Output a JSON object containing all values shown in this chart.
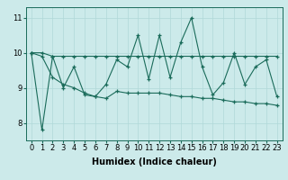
{
  "x": [
    0,
    1,
    2,
    3,
    4,
    5,
    6,
    7,
    8,
    9,
    10,
    11,
    12,
    13,
    14,
    15,
    16,
    17,
    18,
    19,
    20,
    21,
    22,
    23
  ],
  "y_main": [
    10.0,
    7.8,
    9.9,
    9.0,
    9.6,
    8.8,
    8.75,
    9.1,
    9.8,
    9.6,
    10.5,
    9.25,
    10.5,
    9.3,
    10.3,
    11.0,
    9.6,
    8.8,
    9.15,
    10.0,
    9.1,
    9.6,
    9.8,
    8.75
  ],
  "y_upper": [
    10.0,
    10.0,
    9.9,
    9.9,
    9.9,
    9.9,
    9.9,
    9.9,
    9.9,
    9.9,
    9.9,
    9.9,
    9.9,
    9.9,
    9.9,
    9.9,
    9.9,
    9.9,
    9.9,
    9.9,
    9.9,
    9.9,
    9.9,
    9.9
  ],
  "y_lower": [
    10.0,
    9.9,
    9.3,
    9.1,
    9.0,
    8.85,
    8.75,
    8.7,
    8.9,
    8.85,
    8.85,
    8.85,
    8.85,
    8.8,
    8.75,
    8.75,
    8.7,
    8.7,
    8.65,
    8.6,
    8.6,
    8.55,
    8.55,
    8.5
  ],
  "line_color": "#1a6b5a",
  "bg_color": "#cceaea",
  "grid_color": "#b0d8d8",
  "ylim": [
    7.5,
    11.3
  ],
  "xlim": [
    -0.5,
    23.5
  ],
  "yticks": [
    8,
    9,
    10,
    11
  ],
  "xticks": [
    0,
    1,
    2,
    3,
    4,
    5,
    6,
    7,
    8,
    9,
    10,
    11,
    12,
    13,
    14,
    15,
    16,
    17,
    18,
    19,
    20,
    21,
    22,
    23
  ],
  "xlabel": "Humidex (Indice chaleur)",
  "xlabel_fontsize": 7,
  "tick_fontsize": 6,
  "marker": "+"
}
